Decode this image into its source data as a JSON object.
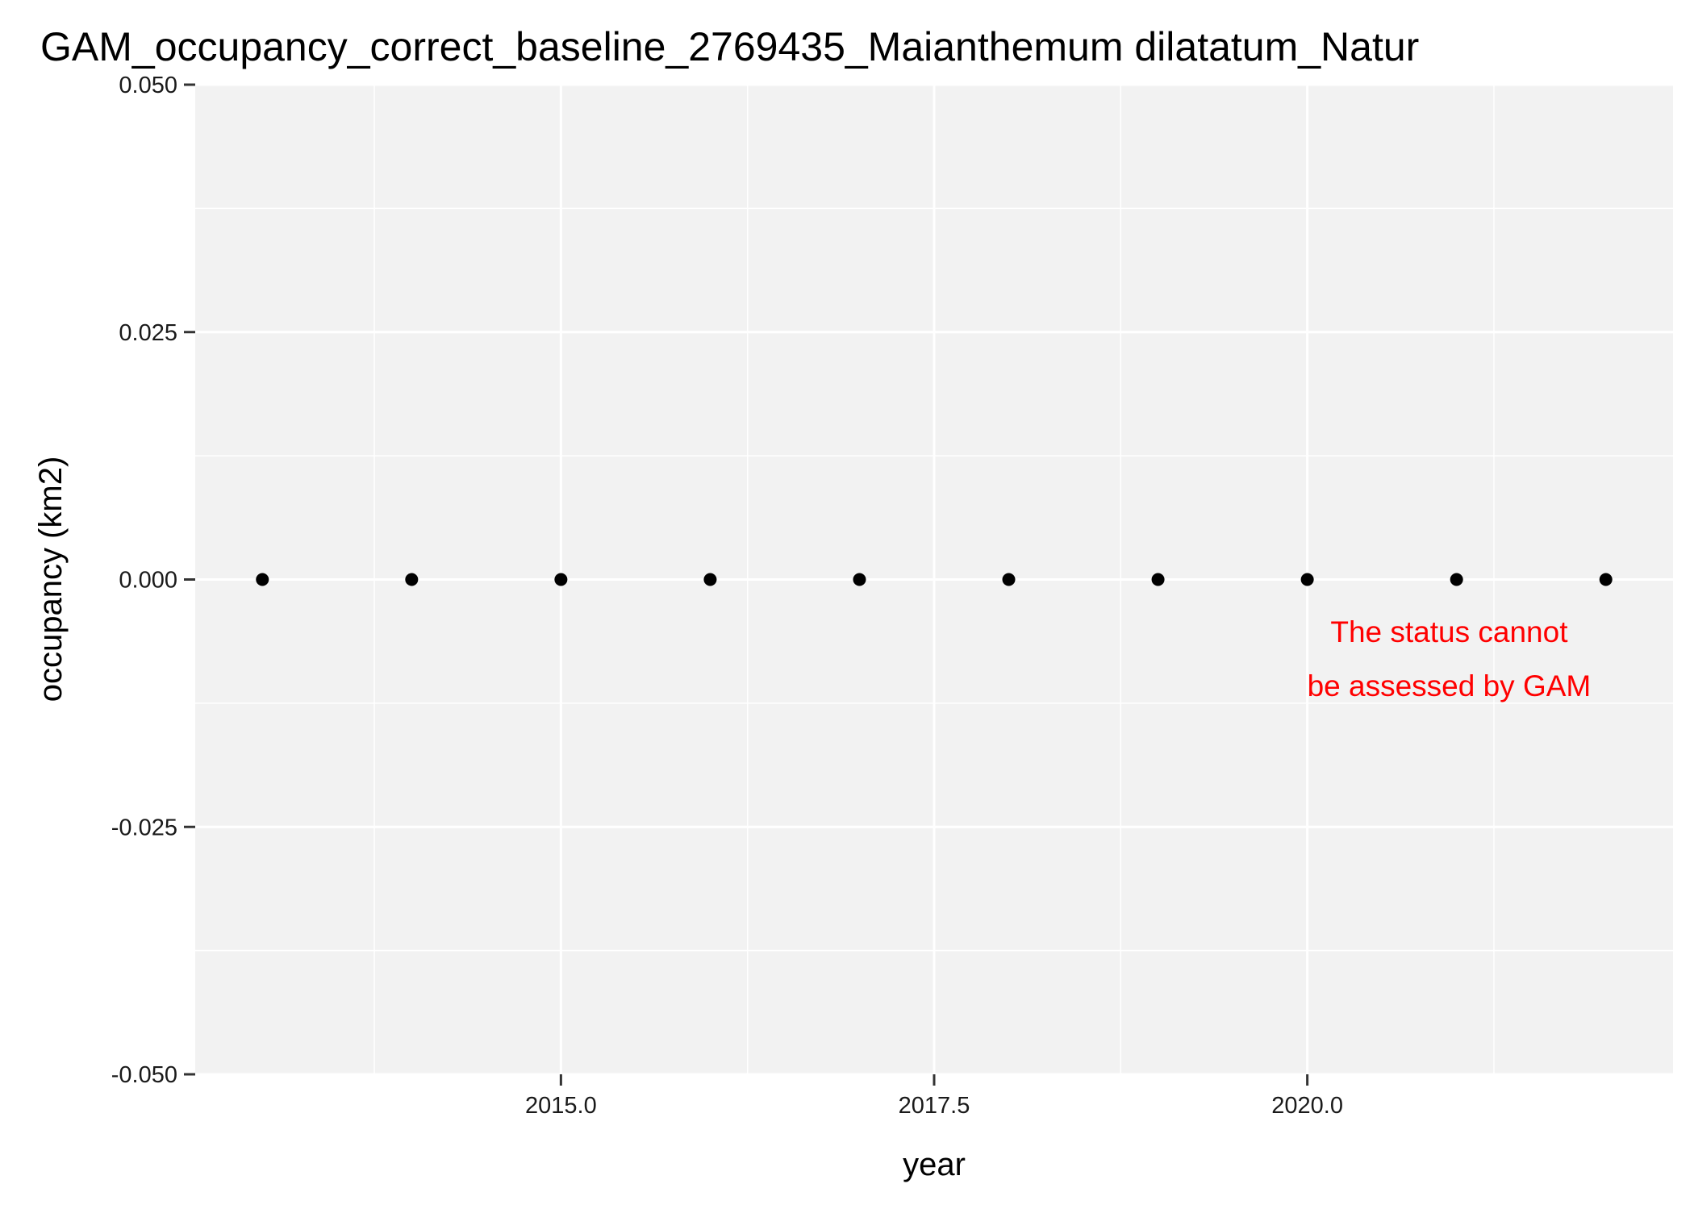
{
  "chart_data": {
    "type": "scatter",
    "title": "GAM_occupancy_correct_baseline_2769435_Maianthemum dilatatum_Natur",
    "xlabel": "year",
    "ylabel": "occupancy (km2)",
    "x": [
      2013,
      2014,
      2015,
      2016,
      2017,
      2018,
      2019,
      2020,
      2021,
      2022
    ],
    "y": [
      0,
      0,
      0,
      0,
      0,
      0,
      0,
      0,
      0,
      0
    ],
    "xlim": [
      2012.55,
      2022.45
    ],
    "ylim": [
      -0.05,
      0.05
    ],
    "x_ticks": [
      2015.0,
      2017.5,
      2020.0
    ],
    "x_tick_labels": [
      "2015.0",
      "2017.5",
      "2020.0"
    ],
    "x_minor_ticks": [
      2013.75,
      2016.25,
      2018.75,
      2021.25
    ],
    "y_ticks": [
      -0.05,
      -0.025,
      0,
      0.025,
      0.05
    ],
    "y_tick_labels": [
      "-0.050",
      "-0.025",
      "0.000",
      "0.025",
      "0.050"
    ],
    "y_minor_ticks": [
      -0.0375,
      -0.0125,
      0.0125,
      0.0375
    ],
    "grid": true,
    "panel_color": "#f2f2f2",
    "point_color": "#000000",
    "annotation": {
      "lines": [
        "The status cannot",
        "be assessed by GAM"
      ],
      "x": 2020.95,
      "y": -0.0055,
      "color": "#ff0000"
    }
  }
}
